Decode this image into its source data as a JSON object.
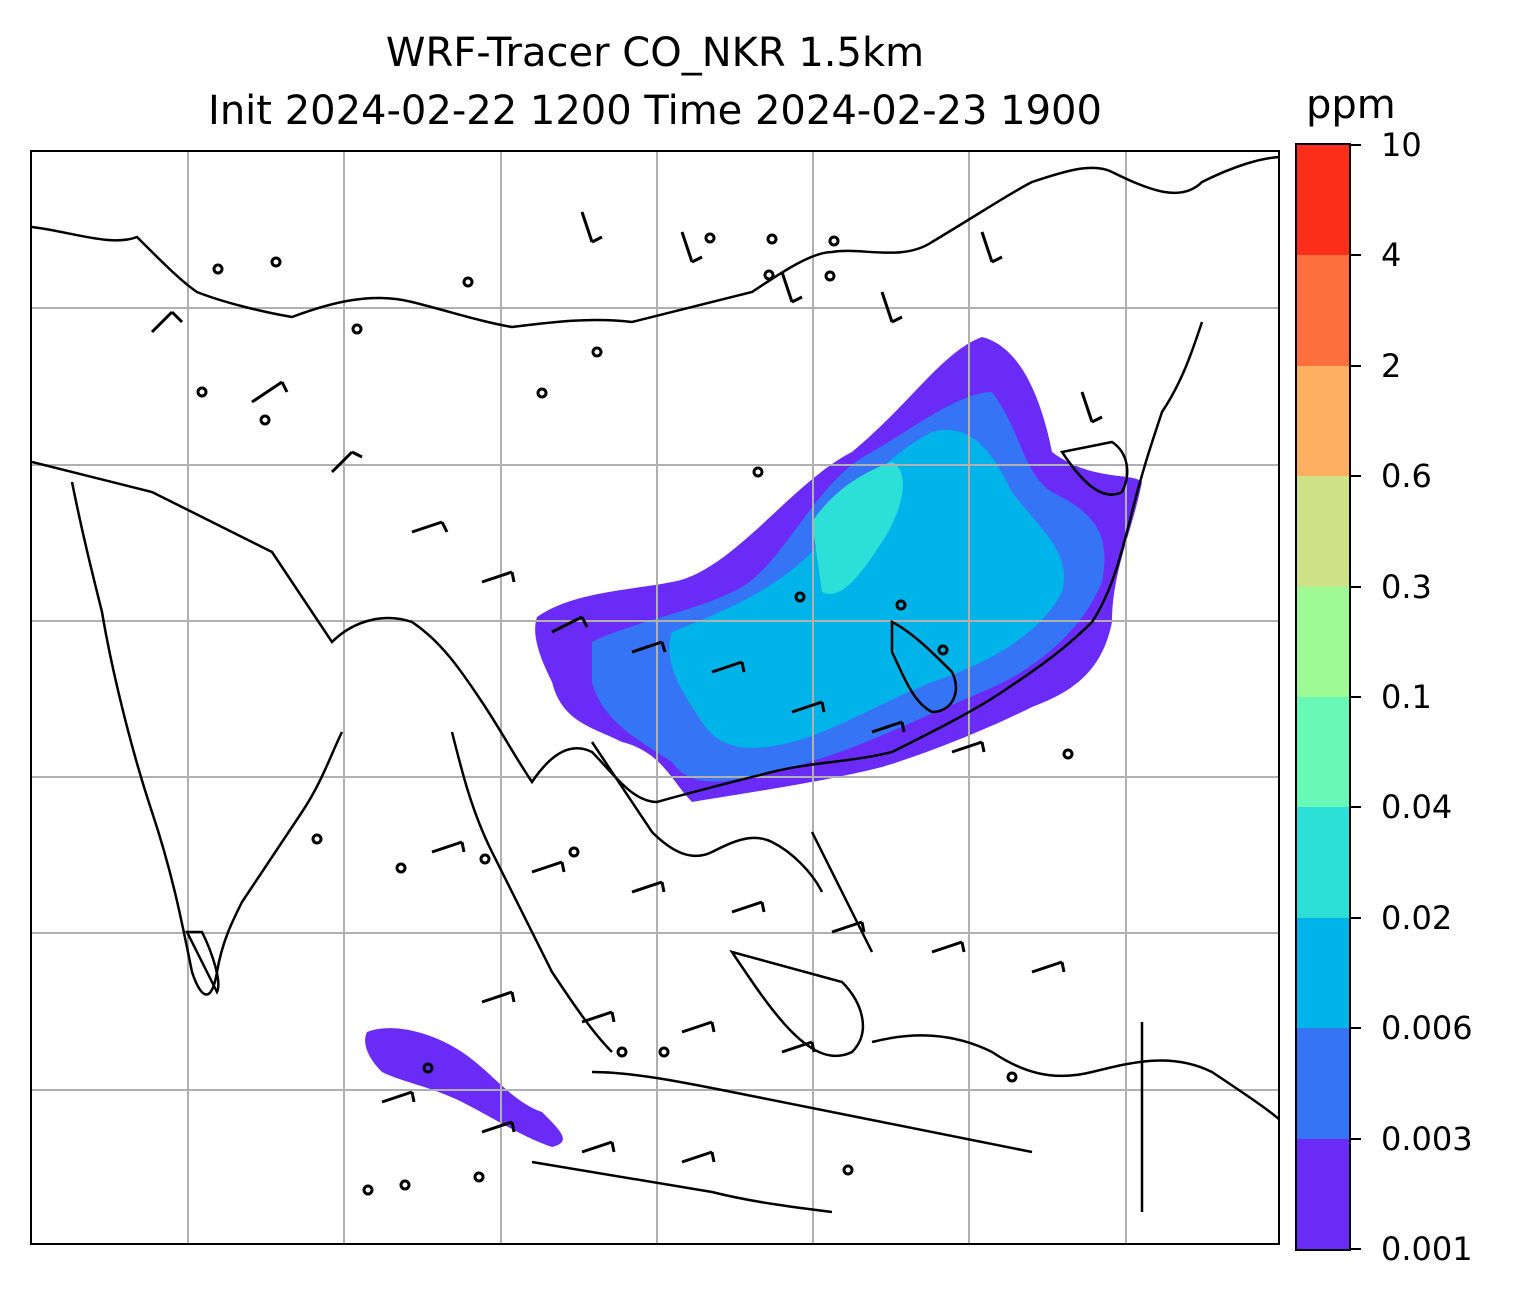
{
  "title_line1": "WRF-Tracer CO_NKR 1.5km",
  "title_line2": "Init 2024-02-22 1200 Time 2024-02-23 1900",
  "colorbar": {
    "units": "ppm",
    "tick_labels": [
      "0.001",
      "0.003",
      "0.006",
      "0.02",
      "0.04",
      "0.1",
      "0.3",
      "0.6",
      "2",
      "4",
      "10"
    ],
    "colors": [
      "#6a2bf7",
      "#3574f4",
      "#00b4ea",
      "#2cdfd7",
      "#69f9b7",
      "#9dfa94",
      "#cfe287",
      "#fdb061",
      "#fd6f3c",
      "#fd2f1a"
    ]
  },
  "map": {
    "projection_grid": "lat/lon gridlines",
    "field": "CO tracer concentration with wind barbs",
    "plume_colors_used": [
      "#6a2bf7",
      "#3574f4",
      "#00b4ea",
      "#2cdfd7"
    ]
  }
}
